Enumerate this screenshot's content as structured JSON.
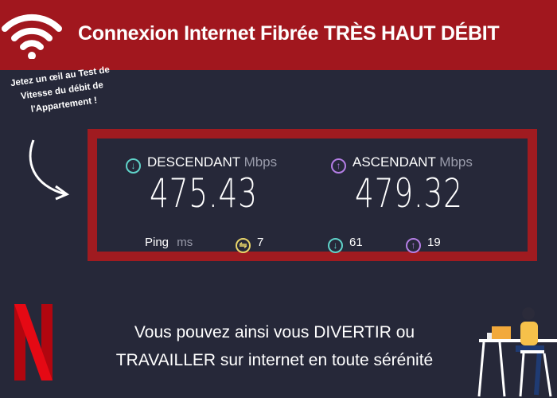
{
  "header": {
    "title": "Connexion Internet Fibrée TRÈS HAUT DÉBIT",
    "icon": "wifi-icon"
  },
  "note": {
    "text": "Jetez un œil au Test de Vitesse du débit de l'Appartement !"
  },
  "speedtest": {
    "download": {
      "label": "DESCENDANT",
      "unit": "Mbps",
      "value": "475.43",
      "color": "#5fd3c9"
    },
    "upload": {
      "label": "ASCENDANT",
      "unit": "Mbps",
      "value": "479.32",
      "color": "#b47ee5"
    },
    "ping": {
      "label": "Ping",
      "unit": "ms",
      "idle": "7",
      "download": "61",
      "upload": "19",
      "idle_color": "#e8d56a"
    }
  },
  "footer": {
    "line1": "Vous pouvez ainsi vous DIVERTIR ou",
    "line2": "TRAVAILLER sur internet en toute sérénité"
  },
  "colors": {
    "header": "#a1171e",
    "background": "#262839",
    "frame": "#a01b20"
  }
}
